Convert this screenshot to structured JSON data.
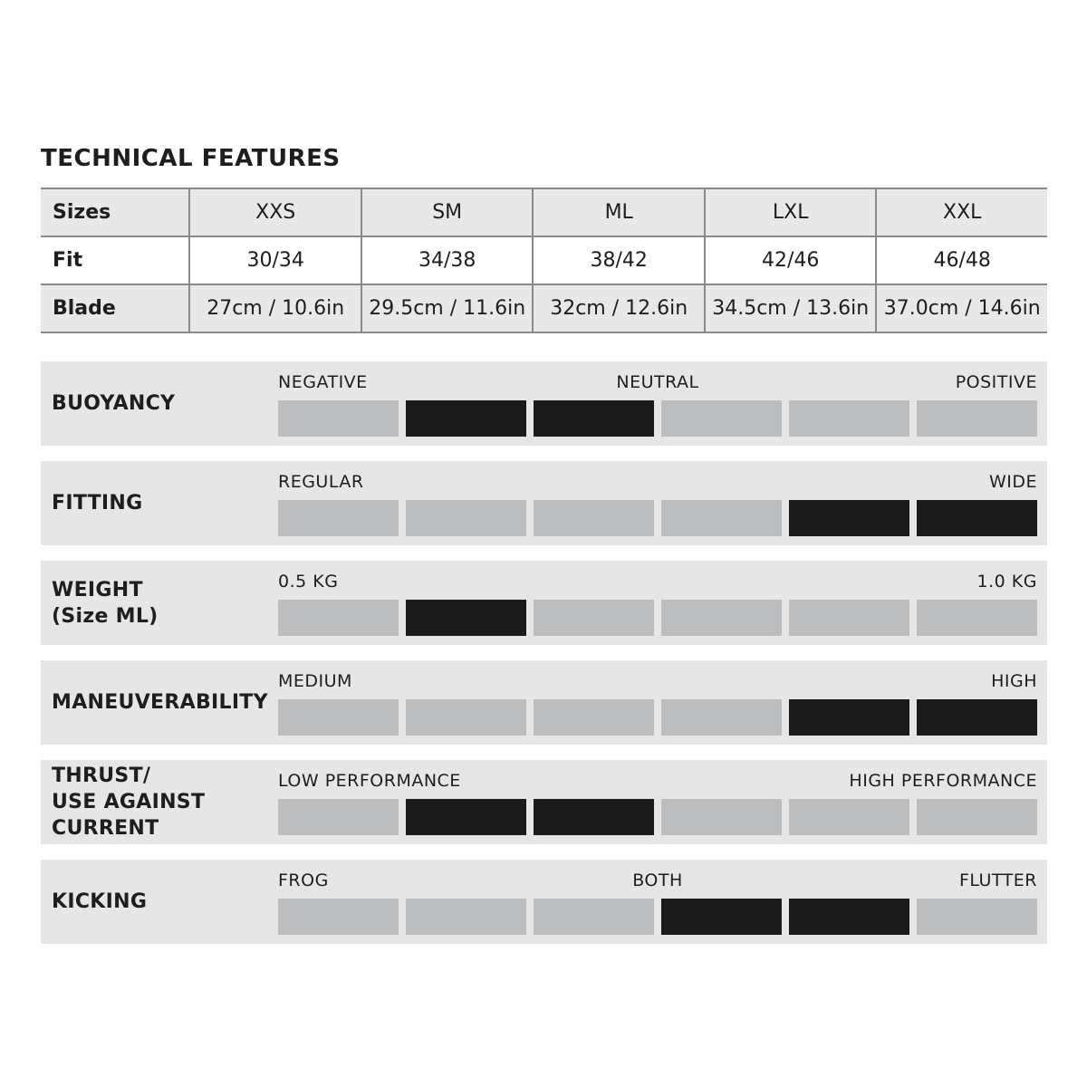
{
  "title": "TECHNICAL FEATURES",
  "size_table": {
    "rows": [
      {
        "label": "Sizes",
        "values": [
          "XXS",
          "SM",
          "ML",
          "LXL",
          "XXL"
        ]
      },
      {
        "label": "Fit",
        "values": [
          "30/34",
          "34/38",
          "38/42",
          "42/46",
          "46/48"
        ]
      },
      {
        "label": "Blade",
        "values": [
          "27cm / 10.6in",
          "29.5cm / 11.6in",
          "32cm / 12.6in",
          "34.5cm / 13.6in",
          "37.0cm / 14.6in"
        ]
      }
    ]
  },
  "colors": {
    "active": "#1b1b1b",
    "inactive": "#bcbdbf",
    "panel": "#e6e6e6"
  },
  "ratings": [
    {
      "label": "BUOYANCY",
      "left": "NEGATIVE",
      "mid": "NEUTRAL",
      "right": "POSITIVE",
      "active": [
        false,
        true,
        true,
        false,
        false,
        false
      ]
    },
    {
      "label": "FITTING",
      "left": "REGULAR",
      "mid": "",
      "right": "WIDE",
      "active": [
        false,
        false,
        false,
        false,
        true,
        true
      ]
    },
    {
      "label": "WEIGHT\n(Size ML)",
      "left": "0.5 KG",
      "mid": "",
      "right": "1.0 KG",
      "active": [
        false,
        true,
        false,
        false,
        false,
        false
      ]
    },
    {
      "label": "MANEUVERABILITY",
      "left": "MEDIUM",
      "mid": "",
      "right": "HIGH",
      "active": [
        false,
        false,
        false,
        false,
        true,
        true
      ]
    },
    {
      "label": "THRUST/\nUSE AGAINST\nCURRENT",
      "left": "LOW PERFORMANCE",
      "mid": "",
      "right": "HIGH PERFORMANCE",
      "active": [
        false,
        true,
        true,
        false,
        false,
        false
      ]
    },
    {
      "label": "KICKING",
      "left": "FROG",
      "mid": "BOTH",
      "right": "FLUTTER",
      "active": [
        false,
        false,
        false,
        true,
        true,
        false
      ]
    }
  ]
}
